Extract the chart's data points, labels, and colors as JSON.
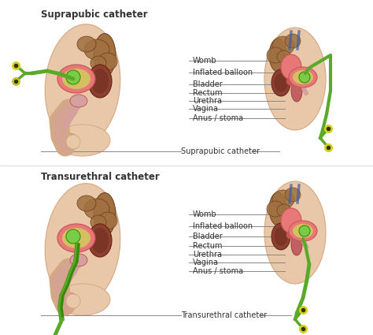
{
  "title_top": "Suprapubic catheter",
  "title_bottom": "Transurethral catheter",
  "bg": "#f5f0eb",
  "white": "#ffffff",
  "skin1": "#e8c8a8",
  "skin2": "#d4a882",
  "skin3": "#c49060",
  "pink1": "#e87878",
  "pink2": "#c85858",
  "pink3": "#d4a0a0",
  "brown1": "#8b5a2b",
  "brown2": "#6b3a1b",
  "brown3": "#a07040",
  "yellow1": "#d4c060",
  "yellow2": "#c8b040",
  "green1": "#5aaa2a",
  "green2": "#3a8a0a",
  "green3": "#78cc48",
  "yellow_conn": "#d4d020",
  "blue1": "#4060a0",
  "line_col": "#888888",
  "text_col": "#333333",
  "title_fs": 8.5,
  "label_fs": 7.0,
  "labels": [
    "Womb",
    "Inflated balloon",
    "Bladder",
    "Rectum",
    "Urethra",
    "Vagina",
    "Anus / stoma"
  ],
  "label_bottom_1": "Suprapubic catheter",
  "label_bottom_2": "Transurethral catheter"
}
